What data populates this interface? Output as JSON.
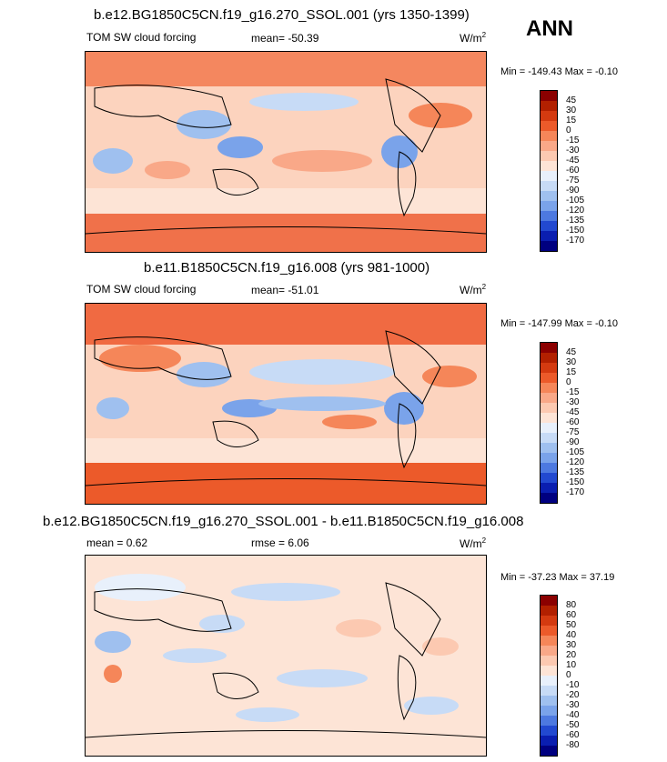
{
  "season": "ANN",
  "panels": [
    {
      "title": "b.e12.BG1850C5CN.f19_g16.270_SSOL.001 (yrs 1350-1399)",
      "left_label": "TOM SW cloud forcing",
      "center_label": "mean= -50.39",
      "units": "W/m",
      "units_sup": "2",
      "minmax": "Min = -149.43 Max =  -0.10",
      "colorbar": {
        "labels": [
          "45",
          "30",
          "15",
          "0",
          "-15",
          "-30",
          "-45",
          "-60",
          "-75",
          "-90",
          "-105",
          "-120",
          "-135",
          "-150",
          "-170"
        ],
        "colors": [
          "#8b0000",
          "#b22000",
          "#d43a10",
          "#ec5a2a",
          "#f58659",
          "#f9a888",
          "#fcc9b1",
          "#fde4d6",
          "#e8f0fb",
          "#c7dbf6",
          "#9fc0ef",
          "#7aa3ea",
          "#4d79e0",
          "#2249d0",
          "#0a1eb0",
          "#000080"
        ]
      }
    },
    {
      "title": "b.e11.B1850C5CN.f19_g16.008 (yrs 981-1000)",
      "left_label": "TOM SW cloud forcing",
      "center_label": "mean= -51.01",
      "units": "W/m",
      "units_sup": "2",
      "minmax": "Min = -147.99 Max =  -0.10",
      "colorbar": {
        "labels": [
          "45",
          "30",
          "15",
          "0",
          "-15",
          "-30",
          "-45",
          "-60",
          "-75",
          "-90",
          "-105",
          "-120",
          "-135",
          "-150",
          "-170"
        ],
        "colors": [
          "#8b0000",
          "#b22000",
          "#d43a10",
          "#ec5a2a",
          "#f58659",
          "#f9a888",
          "#fcc9b1",
          "#fde4d6",
          "#e8f0fb",
          "#c7dbf6",
          "#9fc0ef",
          "#7aa3ea",
          "#4d79e0",
          "#2249d0",
          "#0a1eb0",
          "#000080"
        ]
      }
    },
    {
      "title": "b.e12.BG1850C5CN.f19_g16.270_SSOL.001 - b.e11.B1850C5CN.f19_g16.008",
      "left_label": "mean =   0.62",
      "center_label": "rmse =   6.06",
      "units": "W/m",
      "units_sup": "2",
      "minmax": "Min = -37.23 Max =  37.19",
      "colorbar": {
        "labels": [
          "80",
          "60",
          "50",
          "40",
          "30",
          "20",
          "10",
          "0",
          "-10",
          "-20",
          "-30",
          "-40",
          "-50",
          "-60",
          "-80"
        ],
        "colors": [
          "#8b0000",
          "#b22000",
          "#d43a10",
          "#ec5a2a",
          "#f58659",
          "#f9a888",
          "#fcc9b1",
          "#fde4d6",
          "#e8f0fb",
          "#c7dbf6",
          "#9fc0ef",
          "#7aa3ea",
          "#4d79e0",
          "#2249d0",
          "#0a1eb0",
          "#000080"
        ]
      }
    }
  ]
}
